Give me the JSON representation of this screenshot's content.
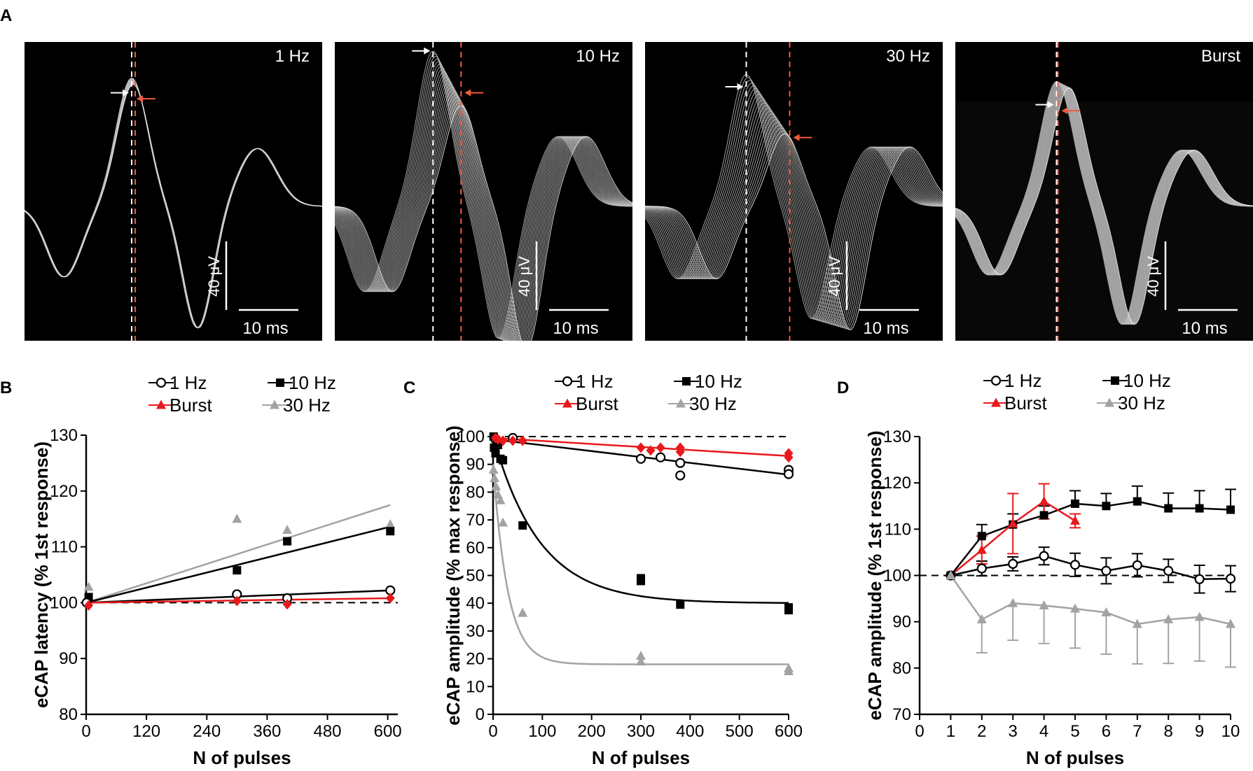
{
  "panel_letters": {
    "a": "A",
    "b": "B",
    "c": "C",
    "d": "D"
  },
  "colors": {
    "black": "#000000",
    "red": "#e8191c",
    "gray": "#a3a3a3",
    "trace": "#d0d0d0",
    "white": "#ffffff",
    "orange_marker": "#f05a3c"
  },
  "traces": {
    "scale_y_label": "40 μV",
    "scale_x_label": "10 ms",
    "panels": [
      {
        "label": "1 Hz"
      },
      {
        "label": "10 Hz"
      },
      {
        "label": "30 Hz"
      },
      {
        "label": "Burst"
      }
    ]
  },
  "legend": {
    "hz1": "1 Hz",
    "hz10": "10 Hz",
    "burst": "Burst",
    "hz30": "30 Hz"
  },
  "chart_data": [
    {
      "id": "B",
      "type": "scatter",
      "ylabel": "eCAP latency (% 1st response)",
      "xlabel": "N of pulses",
      "xlim": [
        0,
        620
      ],
      "ylim": [
        80,
        130
      ],
      "xticks": [
        0,
        120,
        240,
        360,
        480,
        600
      ],
      "yticks": [
        80,
        90,
        100,
        110,
        120,
        130
      ],
      "reference_line": 100,
      "series": [
        {
          "name": "1 Hz",
          "marker": "circle",
          "color": "black",
          "points": [
            [
              1,
              100
            ],
            [
              300,
              101.5
            ],
            [
              400,
              100.8
            ],
            [
              605,
              102.2
            ]
          ],
          "fit": [
            [
              0,
              100
            ],
            [
              605,
              102.2
            ]
          ]
        },
        {
          "name": "10 Hz",
          "marker": "square",
          "color": "black",
          "points": [
            [
              5,
              101
            ],
            [
              300,
              105.8
            ],
            [
              400,
              111
            ],
            [
              605,
              112.8
            ]
          ],
          "fit": [
            [
              0,
              100
            ],
            [
              605,
              113.6
            ]
          ]
        },
        {
          "name": "Burst",
          "marker": "diamond",
          "color": "red",
          "points": [
            [
              5,
              99.5
            ],
            [
              300,
              100.3
            ],
            [
              400,
              99.7
            ],
            [
              605,
              100.8
            ]
          ],
          "fit": [
            [
              0,
              100
            ],
            [
              605,
              100.8
            ]
          ]
        },
        {
          "name": "30 Hz",
          "marker": "triangle",
          "color": "gray",
          "points": [
            [
              5,
              102.8
            ],
            [
              300,
              115
            ],
            [
              400,
              113
            ],
            [
              605,
              114
            ]
          ],
          "fit": [
            [
              0,
              100
            ],
            [
              605,
              117.5
            ]
          ]
        }
      ]
    },
    {
      "id": "C",
      "type": "scatter",
      "ylabel": "eCAP amplitude (% max response)",
      "xlabel": "N of pulses",
      "xlim": [
        0,
        600
      ],
      "ylim": [
        0,
        100
      ],
      "xticks": [
        0,
        100,
        200,
        300,
        400,
        500,
        600
      ],
      "yticks": [
        0,
        10,
        20,
        30,
        40,
        50,
        60,
        70,
        80,
        90,
        100
      ],
      "reference_line": 100,
      "series": [
        {
          "name": "1 Hz",
          "marker": "circle",
          "color": "black",
          "points": [
            [
              5,
              99
            ],
            [
              10,
              98
            ],
            [
              40,
              99.5
            ],
            [
              300,
              92
            ],
            [
              340,
              92.5
            ],
            [
              380,
              90.5
            ],
            [
              380,
              86
            ],
            [
              600,
              88
            ],
            [
              600,
              86.5
            ]
          ],
          "fit": [
            [
              0,
              99
            ],
            [
              600,
              86.3
            ]
          ]
        },
        {
          "name": "10 Hz",
          "marker": "square",
          "color": "black",
          "points": [
            [
              1,
              100
            ],
            [
              2,
              96
            ],
            [
              5,
              94
            ],
            [
              10,
              97
            ],
            [
              15,
              92
            ],
            [
              20,
              91.5
            ],
            [
              60,
              68
            ],
            [
              300,
              49
            ],
            [
              300,
              48
            ],
            [
              380,
              39.5
            ],
            [
              600,
              38.5
            ],
            [
              600,
              37.5
            ]
          ],
          "fit_decay": {
            "y0": 100,
            "plateau": 40,
            "tau": 95
          }
        },
        {
          "name": "Burst",
          "marker": "diamond",
          "color": "red",
          "points": [
            [
              5,
              99.5
            ],
            [
              10,
              99
            ],
            [
              20,
              98.5
            ],
            [
              40,
              98.5
            ],
            [
              60,
              98.5
            ],
            [
              300,
              96
            ],
            [
              320,
              95
            ],
            [
              340,
              96
            ],
            [
              380,
              96
            ],
            [
              380,
              94.5
            ],
            [
              600,
              94
            ],
            [
              600,
              92.5
            ]
          ],
          "fit": [
            [
              0,
              99.5
            ],
            [
              600,
              93
            ]
          ]
        },
        {
          "name": "30 Hz",
          "marker": "triangle",
          "color": "gray",
          "points": [
            [
              1,
              88
            ],
            [
              3,
              85
            ],
            [
              6,
              82
            ],
            [
              10,
              79
            ],
            [
              15,
              77
            ],
            [
              20,
              69
            ],
            [
              60,
              36.5
            ],
            [
              300,
              21
            ],
            [
              300,
              19
            ],
            [
              600,
              16.5
            ],
            [
              600,
              15.5
            ]
          ],
          "fit_decay": {
            "y0": 90,
            "plateau": 18,
            "tau": 30
          }
        }
      ]
    },
    {
      "id": "D",
      "type": "line",
      "ylabel": "eCAP amplitude (% 1st response)",
      "xlabel": "N of pulses",
      "xlim": [
        0,
        10
      ],
      "ylim": [
        70,
        130
      ],
      "xticks": [
        0,
        1,
        2,
        3,
        4,
        5,
        6,
        7,
        8,
        9,
        10
      ],
      "yticks": [
        70,
        80,
        90,
        100,
        110,
        120,
        130
      ],
      "reference_line": 100,
      "series": [
        {
          "name": "1 Hz",
          "marker": "circle",
          "color": "black",
          "x": [
            1,
            2,
            3,
            4,
            5,
            6,
            7,
            8,
            9,
            10
          ],
          "values": [
            100,
            101.5,
            102.5,
            104.2,
            102.3,
            101,
            102.2,
            101,
            99.2,
            99.3
          ],
          "err": [
            0,
            1.6,
            1.5,
            1.9,
            2.5,
            2.8,
            2.5,
            2.5,
            3.0,
            2.8
          ],
          "err_dir": "both"
        },
        {
          "name": "10 Hz",
          "marker": "square",
          "color": "black",
          "x": [
            1,
            2,
            3,
            4,
            5,
            6,
            7,
            8,
            9,
            10
          ],
          "values": [
            100,
            108.5,
            111,
            113,
            115.5,
            115,
            116,
            114.5,
            114.5,
            114.2
          ],
          "err": [
            0,
            2.5,
            2.3,
            2.0,
            2.8,
            2.7,
            3.3,
            3.3,
            3.8,
            4.4
          ],
          "err_dir": "up"
        },
        {
          "name": "Burst",
          "marker": "triangle",
          "color": "red",
          "x": [
            1,
            2,
            3,
            4,
            5
          ],
          "values": [
            100,
            105.5,
            111.2,
            116,
            111.8
          ],
          "err": [
            0,
            3.0,
            6.5,
            3.8,
            1.5
          ],
          "err_dir": "both"
        },
        {
          "name": "30 Hz",
          "marker": "triangle",
          "color": "gray",
          "x": [
            1,
            2,
            3,
            4,
            5,
            6,
            7,
            8,
            9,
            10
          ],
          "values": [
            100,
            90.5,
            94,
            93.5,
            92.8,
            92,
            89.5,
            90.5,
            91,
            89.5
          ],
          "err": [
            0,
            7.2,
            8.0,
            8.2,
            8.5,
            9.0,
            8.6,
            9.5,
            9.5,
            9.3
          ],
          "err_dir": "down"
        }
      ]
    }
  ]
}
